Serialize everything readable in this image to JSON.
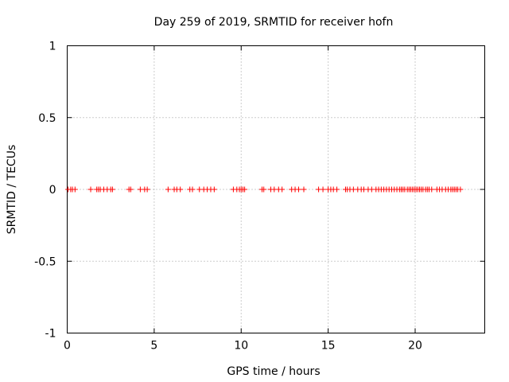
{
  "chart_data": {
    "type": "scatter",
    "title": "Day 259 of 2019, SRMTID for receiver hofn",
    "xlabel": "GPS time / hours",
    "ylabel": "SRMTID / TECUs",
    "xlim": [
      0,
      24
    ],
    "ylim": [
      -1,
      1
    ],
    "x_ticks": [
      0,
      5,
      10,
      15,
      20
    ],
    "x_tick_labels": [
      "0",
      "5",
      "10",
      "15",
      "20"
    ],
    "y_ticks": [
      -1,
      -0.5,
      0,
      0.5,
      1
    ],
    "y_tick_labels": [
      "-1",
      "-0.5",
      "0",
      "0.5",
      "1"
    ],
    "grid": true,
    "marker": "+",
    "marker_color": "#ff0000",
    "series": [
      {
        "name": "SRMTID",
        "x": [
          0.05,
          0.2,
          0.3,
          0.45,
          1.35,
          1.7,
          1.8,
          1.9,
          2.1,
          2.3,
          2.5,
          2.6,
          3.55,
          3.65,
          4.2,
          4.45,
          4.6,
          5.8,
          6.15,
          6.3,
          6.5,
          7.05,
          7.2,
          7.6,
          7.85,
          8.05,
          8.25,
          8.45,
          9.55,
          9.75,
          9.9,
          10.0,
          10.1,
          10.2,
          11.2,
          11.3,
          11.7,
          11.9,
          12.15,
          12.35,
          12.9,
          13.1,
          13.3,
          13.6,
          14.45,
          14.7,
          15.0,
          15.15,
          15.3,
          15.5,
          16.0,
          16.1,
          16.25,
          16.45,
          16.7,
          16.9,
          17.05,
          17.3,
          17.5,
          17.75,
          17.9,
          18.05,
          18.2,
          18.35,
          18.5,
          18.65,
          18.8,
          18.95,
          19.1,
          19.2,
          19.3,
          19.4,
          19.55,
          19.65,
          19.75,
          19.85,
          19.95,
          20.05,
          20.15,
          20.25,
          20.35,
          20.45,
          20.6,
          20.7,
          20.8,
          20.95,
          21.25,
          21.4,
          21.55,
          21.75,
          21.9,
          22.05,
          22.15,
          22.25,
          22.35,
          22.45,
          22.6
        ],
        "y": [
          0,
          0,
          0,
          0,
          0,
          0,
          0,
          0,
          0,
          0,
          0,
          0,
          0,
          0,
          0,
          0,
          0,
          0,
          0,
          0,
          0,
          0,
          0,
          0,
          0,
          0,
          0,
          0,
          0,
          0,
          0,
          0,
          0,
          0,
          0,
          0,
          0,
          0,
          0,
          0,
          0,
          0,
          0,
          0,
          0,
          0,
          0,
          0,
          0,
          0,
          0,
          0,
          0,
          0,
          0,
          0,
          0,
          0,
          0,
          0,
          0,
          0,
          0,
          0,
          0,
          0,
          0,
          0,
          0,
          0,
          0,
          0,
          0,
          0,
          0,
          0,
          0,
          0,
          0,
          0,
          0,
          0,
          0,
          0,
          0,
          0,
          0,
          0,
          0,
          0,
          0,
          0,
          0,
          0,
          0,
          0,
          0
        ]
      }
    ]
  }
}
